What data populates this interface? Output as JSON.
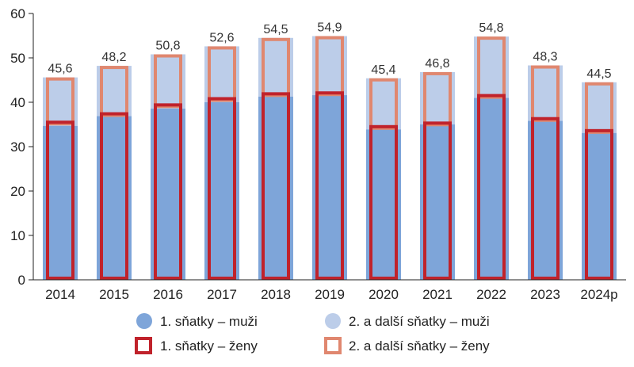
{
  "chart_data": {
    "type": "bar",
    "title": "",
    "xlabel": "",
    "ylabel": "",
    "ylim": [
      0,
      60
    ],
    "yticks": [
      0,
      10,
      20,
      30,
      40,
      50,
      60
    ],
    "categories": [
      "2014",
      "2015",
      "2016",
      "2017",
      "2018",
      "2019",
      "2020",
      "2021",
      "2022",
      "2023",
      "2024p"
    ],
    "series": [
      {
        "name": "1. sňatky – muži",
        "values": [
          34.7,
          36.9,
          38.6,
          40.0,
          41.3,
          41.6,
          33.9,
          35.0,
          41.0,
          35.8,
          33.1
        ]
      },
      {
        "name": "2. a další sňatky – muži",
        "values": [
          10.9,
          11.3,
          12.2,
          12.6,
          13.2,
          13.3,
          11.5,
          11.8,
          13.8,
          12.5,
          11.4
        ]
      },
      {
        "name": "1. sňatky – ženy",
        "values": [
          35.5,
          37.4,
          39.4,
          40.8,
          41.9,
          42.1,
          34.5,
          35.3,
          41.5,
          36.3,
          33.6
        ]
      },
      {
        "name": "2. a další sňatky – ženy",
        "values": [
          10.1,
          10.8,
          11.4,
          11.8,
          12.6,
          12.8,
          10.9,
          11.5,
          13.3,
          12.0,
          10.9
        ]
      }
    ],
    "totals": [
      "45,6",
      "48,2",
      "50,8",
      "52,6",
      "54,5",
      "54,9",
      "45,4",
      "46,8",
      "54,8",
      "48,3",
      "44,5"
    ],
    "colors": {
      "men_first": "#7ea5d9",
      "men_other": "#bccde9",
      "women_first": "#c0222b",
      "women_other": "#e0876f"
    },
    "grid": false,
    "legend_position": "bottom"
  }
}
